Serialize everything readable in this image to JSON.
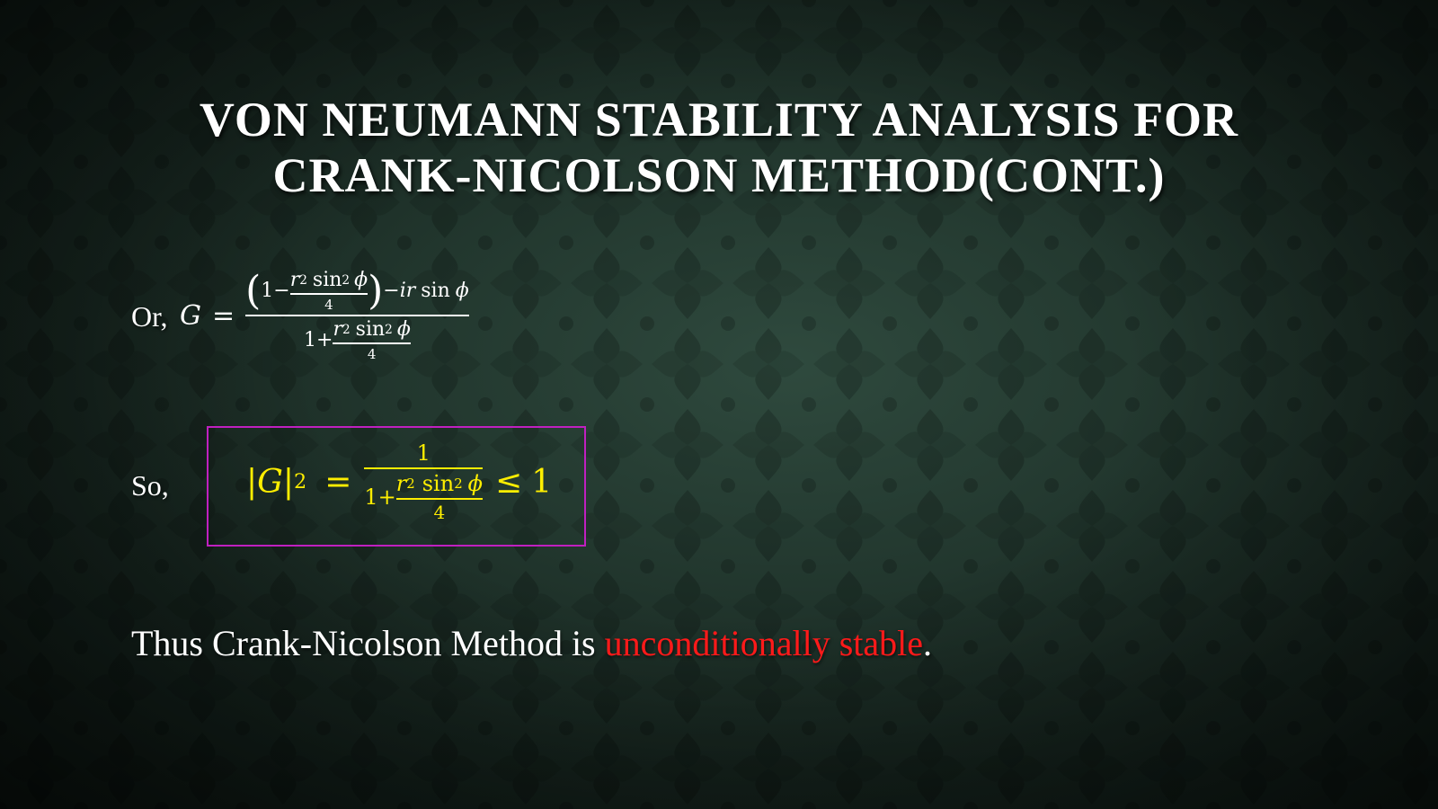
{
  "slide": {
    "title_line1": "Von Neumann Stability Analysis for",
    "title_line2": "Crank-Nicolson Method(Cont.)",
    "colors": {
      "background": "#22372e",
      "text": "#ffffff",
      "highlight_equation": "#ffee00",
      "box_border": "#c020c0",
      "emphasis": "#ff1a1a"
    }
  },
  "equation1": {
    "prefix_label": "Or,",
    "lhs": "G",
    "equals": "=",
    "one": "1",
    "minus": "−",
    "r": "r",
    "sq": "2",
    "sin": "sin",
    "phi": "ϕ",
    "four": "4",
    "minus_ir": "−ir",
    "plus": "+",
    "open_paren": "(",
    "close_paren": ")"
  },
  "equation2": {
    "prefix_label": "So,",
    "lhs": "|G|",
    "sq": "2",
    "equals": "=",
    "numerator": "1",
    "one": "1",
    "plus": "+",
    "r": "r",
    "sin": "sin",
    "phi": "ϕ",
    "four": "4",
    "leq": "≤",
    "rhs": "1"
  },
  "conclusion": {
    "text_before": "Thus Crank-Nicolson Method is ",
    "emphasis": "unconditionally stable",
    "text_after": "."
  }
}
